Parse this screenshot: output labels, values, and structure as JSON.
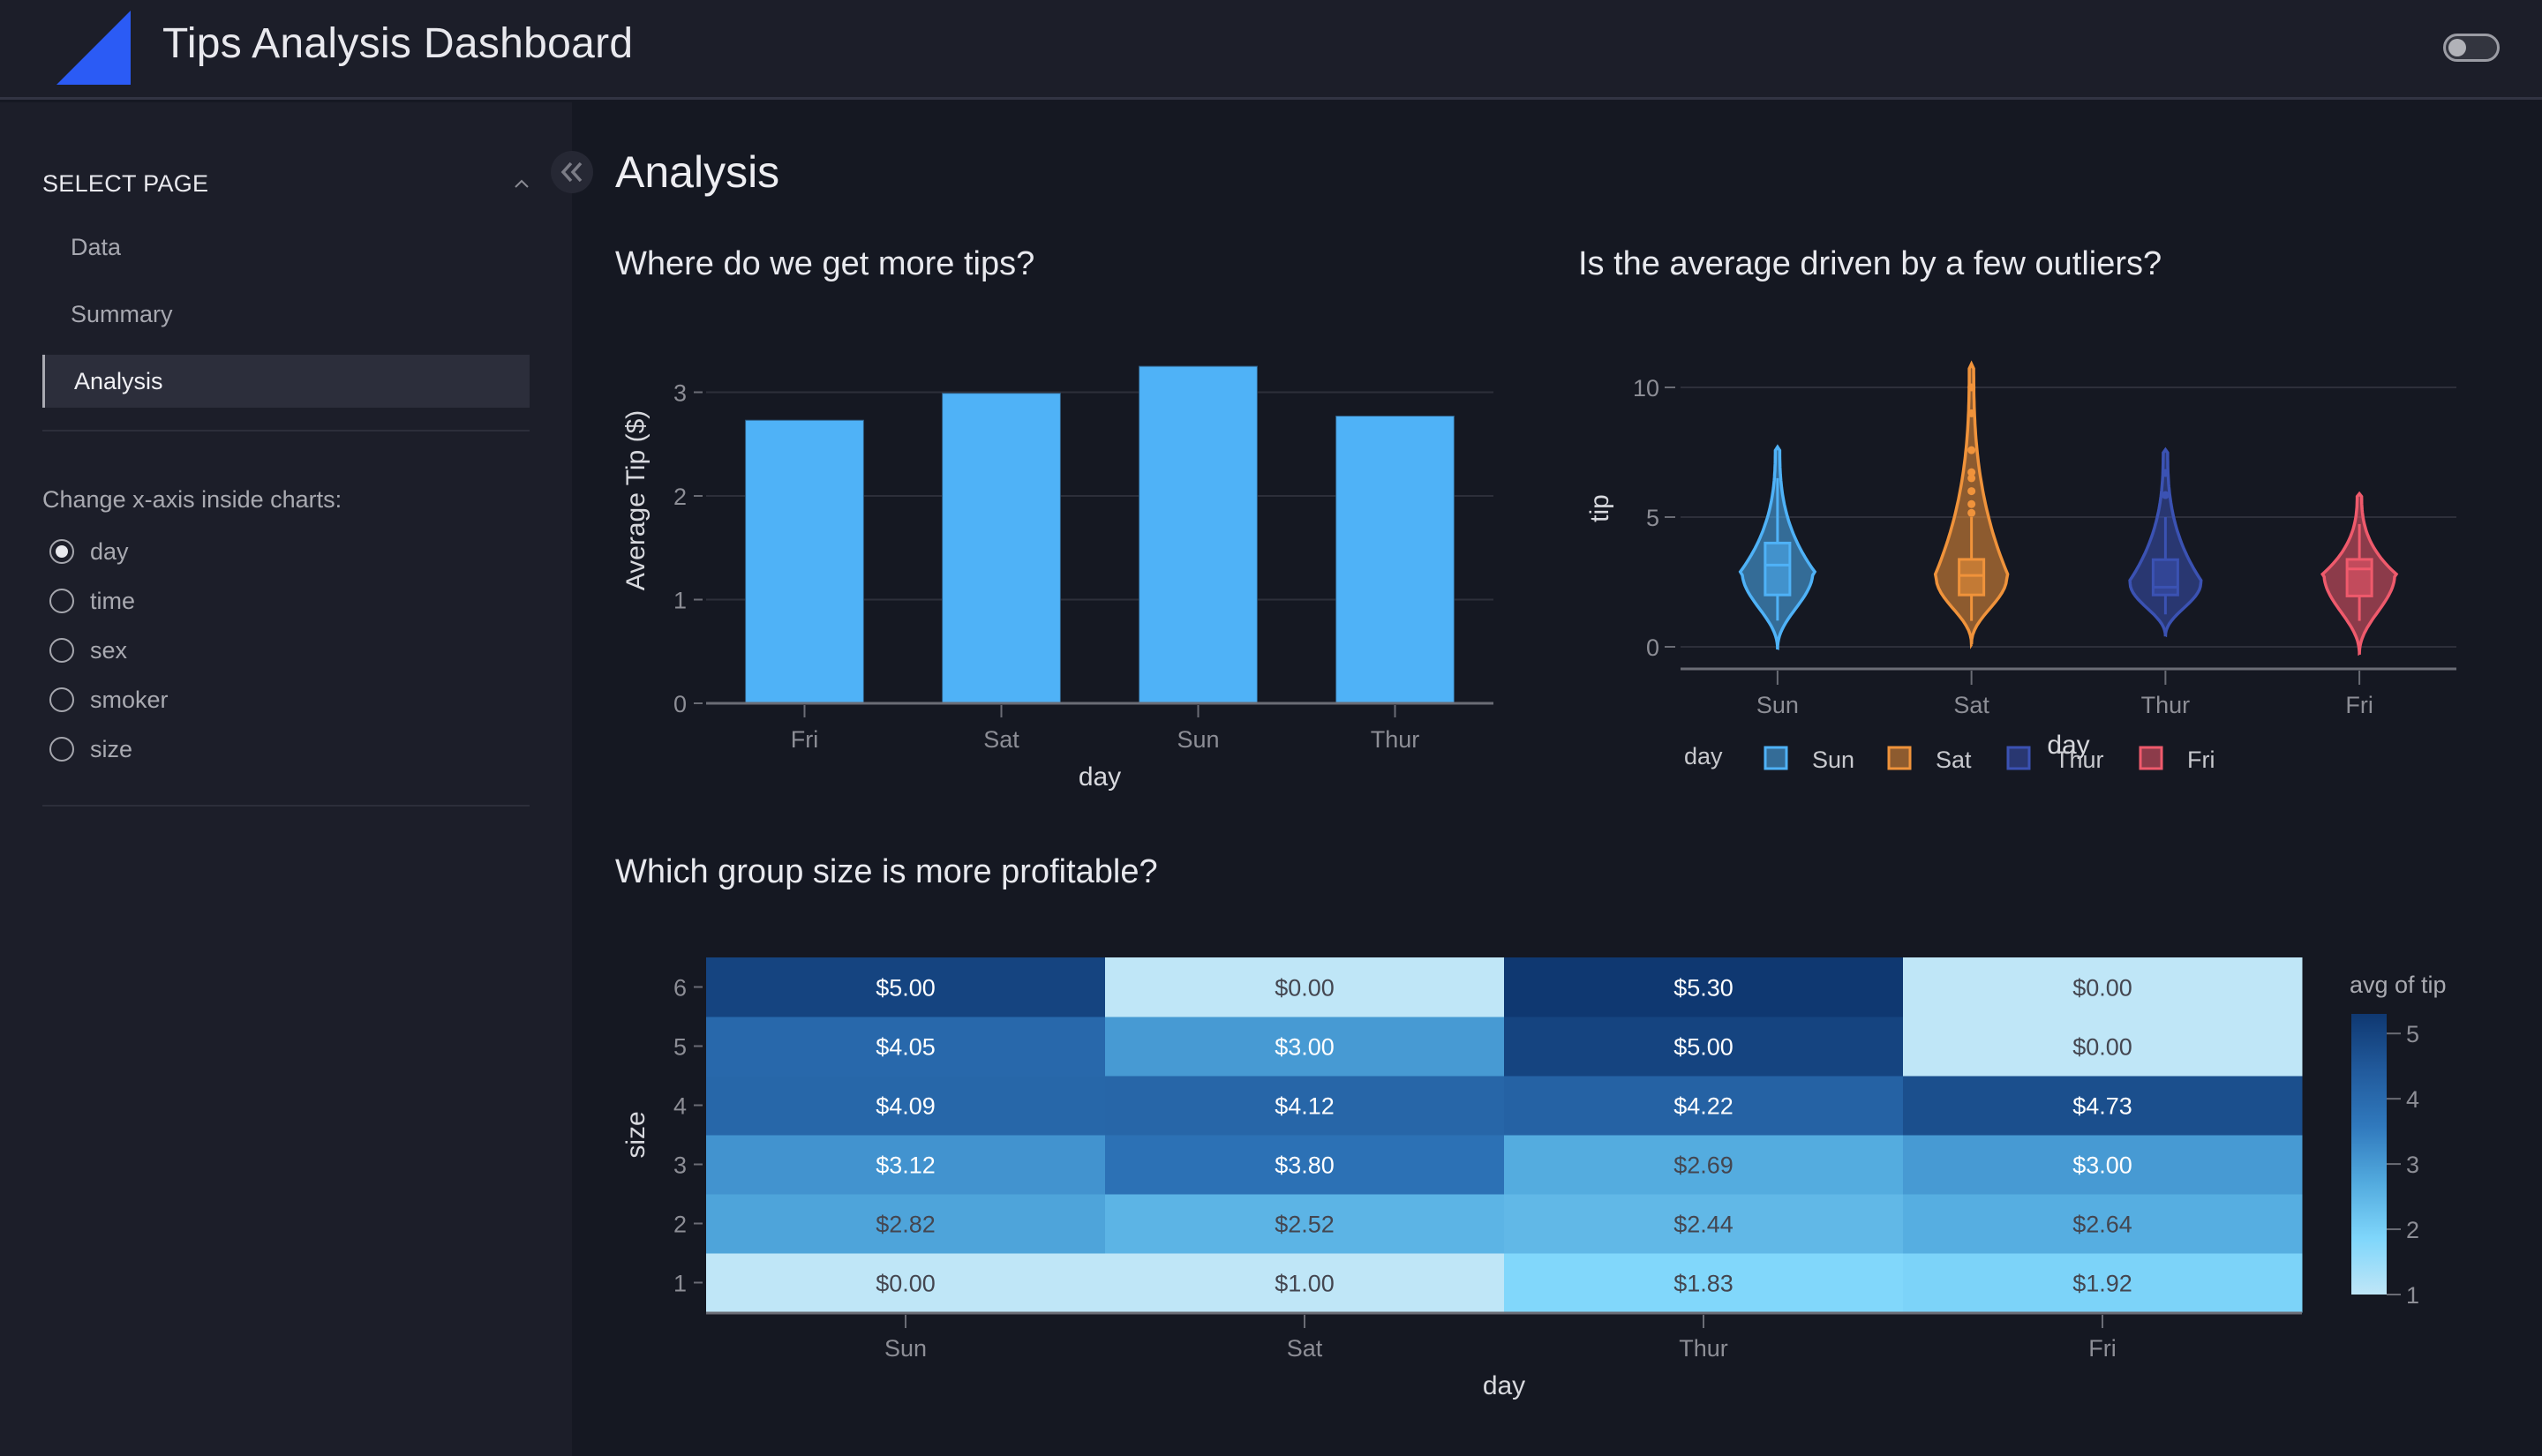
{
  "header": {
    "title": "Tips Analysis Dashboard",
    "logo_icon": "triangle-logo-icon",
    "logo_color": "#2b5bf5",
    "theme_toggle_on": false
  },
  "sidebar": {
    "select_page_label": "SELECT PAGE",
    "nav_items": [
      {
        "label": "Data",
        "active": false
      },
      {
        "label": "Summary",
        "active": false
      },
      {
        "label": "Analysis",
        "active": true
      }
    ],
    "radio_title": "Change x-axis inside charts:",
    "radio_options": [
      {
        "label": "day",
        "checked": true
      },
      {
        "label": "time",
        "checked": false
      },
      {
        "label": "sex",
        "checked": false
      },
      {
        "label": "smoker",
        "checked": false
      },
      {
        "label": "size",
        "checked": false
      }
    ]
  },
  "main": {
    "page_title": "Analysis",
    "chart_titles": {
      "bar": "Where do we get more tips?",
      "violin": "Is the average driven by a few outliers?",
      "heatmap": "Which group size is more profitable?"
    }
  },
  "colors": {
    "bar": "#4fb2f7",
    "Sun": "#4fb2f7",
    "Sat": "#f0933b",
    "Thur": "#3b52b3",
    "Fri": "#ef5a6c"
  },
  "chart_data": [
    {
      "type": "bar",
      "title": "Where do we get more tips?",
      "xlabel": "day",
      "ylabel": "Average Tip ($)",
      "categories": [
        "Fri",
        "Sat",
        "Sun",
        "Thur"
      ],
      "values": [
        2.73,
        2.99,
        3.25,
        2.77
      ],
      "yticks": [
        0,
        1,
        2,
        3
      ],
      "ylim": [
        0,
        3.42
      ],
      "grid": true
    },
    {
      "type": "violin",
      "title": "Is the average driven by a few outliers?",
      "xlabel": "day",
      "ylabel": "tip",
      "categories": [
        "Sun",
        "Sat",
        "Thur",
        "Fri"
      ],
      "yticks": [
        0,
        5,
        10
      ],
      "ylim": [
        -1.5,
        11.2
      ],
      "legend_title": "day",
      "legend_position": "bottom",
      "series": [
        {
          "name": "Sun",
          "min": 1.01,
          "q1": 2.0,
          "median": 3.15,
          "q3": 4.0,
          "whisker_high": 6.5,
          "max": 6.5,
          "kde_low": -0.1,
          "kde_high": 7.7,
          "outliers": []
        },
        {
          "name": "Sat",
          "min": 1.0,
          "q1": 2.0,
          "median": 2.75,
          "q3": 3.37,
          "whisker_high": 5.0,
          "max": 10.0,
          "kde_low": 0.1,
          "kde_high": 10.9,
          "outliers": [
            5.16,
            5.5,
            6.0,
            6.5,
            6.73,
            7.58,
            9.0,
            10.0
          ]
        },
        {
          "name": "Thur",
          "min": 1.25,
          "q1": 2.0,
          "median": 2.3,
          "q3": 3.36,
          "whisker_high": 5.0,
          "max": 6.7,
          "kde_low": 0.4,
          "kde_high": 7.6,
          "outliers": [
            5.85,
            6.7
          ]
        },
        {
          "name": "Fri",
          "min": 1.0,
          "q1": 1.96,
          "median": 3.0,
          "q3": 3.37,
          "whisker_high": 4.73,
          "max": 4.73,
          "kde_low": -0.3,
          "kde_high": 5.9,
          "outliers": []
        }
      ]
    },
    {
      "type": "heatmap",
      "title": "Which group size is more profitable?",
      "xlabel": "day",
      "ylabel": "size",
      "x": [
        "Sun",
        "Sat",
        "Thur",
        "Fri"
      ],
      "y": [
        1,
        2,
        3,
        4,
        5,
        6
      ],
      "z": [
        [
          0.0,
          1.0,
          1.83,
          1.92
        ],
        [
          2.82,
          2.52,
          2.44,
          2.64
        ],
        [
          3.12,
          3.8,
          2.69,
          3.0
        ],
        [
          4.09,
          4.12,
          4.22,
          4.73
        ],
        [
          4.05,
          3.0,
          5.0,
          0.0
        ],
        [
          5.0,
          0.0,
          5.3,
          0.0
        ]
      ],
      "labels": [
        [
          "$0.00",
          "$1.00",
          "$1.83",
          "$1.92"
        ],
        [
          "$2.82",
          "$2.52",
          "$2.44",
          "$2.64"
        ],
        [
          "$3.12",
          "$3.80",
          "$2.69",
          "$3.00"
        ],
        [
          "$4.09",
          "$4.12",
          "$4.22",
          "$4.73"
        ],
        [
          "$4.05",
          "$3.00",
          "$5.00",
          "$0.00"
        ],
        [
          "$5.00",
          "$0.00",
          "$5.30",
          "$0.00"
        ]
      ],
      "colorbar_title": "avg of tip",
      "colorbar_ticks": [
        1,
        2,
        3,
        4,
        5
      ],
      "zrange": [
        1,
        5.3
      ],
      "colorscale": [
        "#bfe6f7",
        "#7fd6fb",
        "#52aade",
        "#3079bd",
        "#215a9c",
        "#0f3871"
      ]
    }
  ]
}
